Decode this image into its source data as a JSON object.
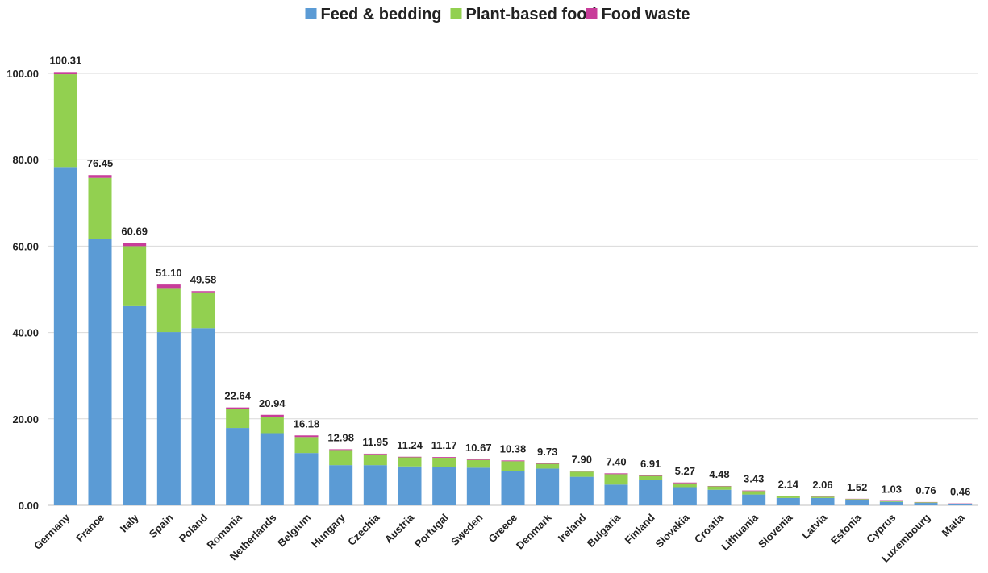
{
  "chart_data": {
    "type": "bar",
    "stacked": true,
    "legend_position": "top-center",
    "grid": true,
    "ylim": [
      0,
      100
    ],
    "yticks": [
      "0.00",
      "20.00",
      "40.00",
      "60.00",
      "80.00",
      "100.00"
    ],
    "categories": [
      "Germany",
      "France",
      "Italy",
      "Spain",
      "Poland",
      "Romania",
      "Netherlands",
      "Belgium",
      "Hungary",
      "Czechia",
      "Austria",
      "Portugal",
      "Sweden",
      "Greece",
      "Denmark",
      "Ireland",
      "Bulgaria",
      "Finland",
      "Slovakia",
      "Croatia",
      "Lithuania",
      "Slovenia",
      "Latvia",
      "Estonia",
      "Cyprus",
      "Luxembourg",
      "Malta"
    ],
    "series": [
      {
        "name": "Feed & bedding",
        "color": "#5b9bd5",
        "values": [
          78.3,
          61.7,
          46.1,
          40.1,
          41.0,
          17.9,
          16.7,
          12.1,
          9.3,
          9.3,
          9.0,
          8.8,
          8.7,
          7.9,
          8.5,
          6.6,
          4.8,
          5.8,
          4.2,
          3.6,
          2.5,
          1.7,
          1.7,
          1.2,
          0.8,
          0.55,
          0.3
        ]
      },
      {
        "name": "Plant-based food",
        "color": "#92d050",
        "values": [
          21.5,
          14.1,
          13.9,
          10.2,
          8.3,
          4.4,
          3.7,
          3.7,
          3.5,
          2.5,
          2.1,
          2.2,
          1.8,
          2.3,
          1.1,
          1.2,
          2.4,
          1.0,
          0.9,
          0.8,
          0.8,
          0.35,
          0.3,
          0.25,
          0.15,
          0.15,
          0.1
        ]
      },
      {
        "name": "Food waste",
        "color": "#c83d9a",
        "values": [
          0.51,
          0.65,
          0.69,
          0.8,
          0.28,
          0.34,
          0.54,
          0.38,
          0.18,
          0.15,
          0.14,
          0.17,
          0.17,
          0.18,
          0.13,
          0.1,
          0.2,
          0.11,
          0.17,
          0.08,
          0.13,
          0.09,
          0.06,
          0.07,
          0.08,
          0.06,
          0.06
        ]
      }
    ],
    "totals": [
      "100.31",
      "76.45",
      "60.69",
      "51.10",
      "49.58",
      "22.64",
      "20.94",
      "16.18",
      "12.98",
      "11.95",
      "11.24",
      "11.17",
      "10.67",
      "10.38",
      "9.73",
      "7.90",
      "7.40",
      "6.91",
      "5.27",
      "4.48",
      "3.43",
      "2.14",
      "2.06",
      "1.52",
      "1.03",
      "0.76",
      "0.46"
    ]
  }
}
